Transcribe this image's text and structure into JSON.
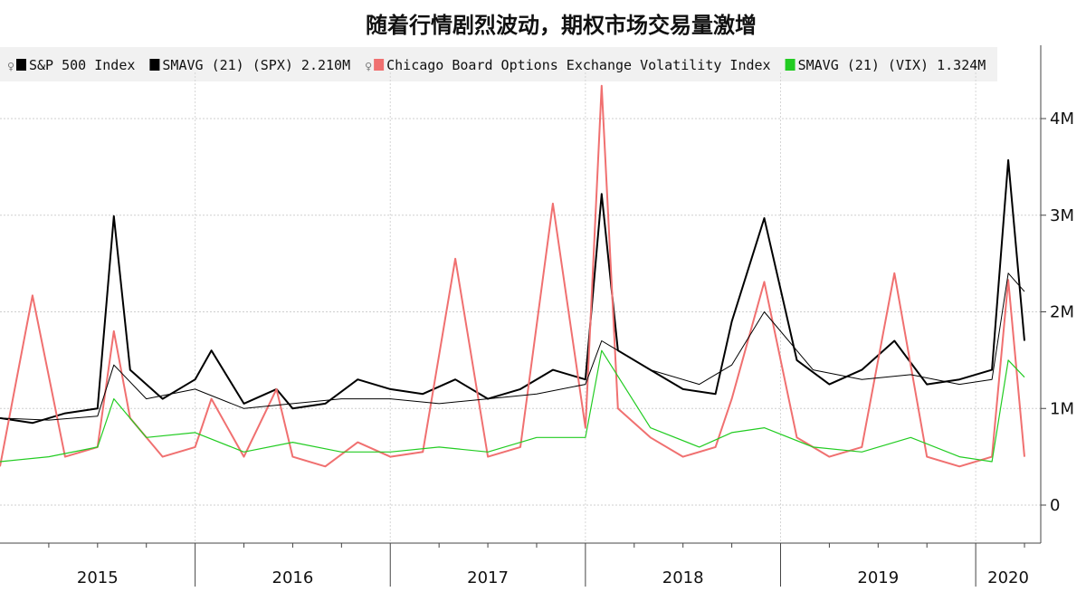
{
  "title": "随着行情剧烈波动，期权市场交易量激增",
  "legend": [
    {
      "name": "S&P 500 Index",
      "color": "#000000",
      "pin": true
    },
    {
      "name": "SMAVG (21) (SPX) 2.210M",
      "color": "#000000",
      "pin": false
    },
    {
      "name": "Chicago Board Options Exchange Volatility Index",
      "color": "#f07070",
      "pin": true
    },
    {
      "name": "SMAVG (21) (VIX) 1.324M",
      "color": "#22cc22",
      "pin": false
    }
  ],
  "chart_data": {
    "type": "line",
    "title": "随着行情剧烈波动，期权市场交易量激增",
    "xlabel": "",
    "ylabel": "",
    "x_range": [
      "2015-01",
      "2020-04"
    ],
    "ylim": [
      0,
      4600000
    ],
    "y_ticks": [
      0,
      1000000,
      2000000,
      3000000,
      4000000
    ],
    "y_tick_labels": [
      "0",
      "1M",
      "2M",
      "3M",
      "4M"
    ],
    "x_tick_labels": [
      "2015",
      "2016",
      "2017",
      "2018",
      "2019",
      "2020"
    ],
    "grid": true,
    "legend_position": "top-left",
    "y_axis_side": "right",
    "series": [
      {
        "name": "S&P 500 Index",
        "color": "#000000",
        "x": [
          "2015-01",
          "2015-03",
          "2015-05",
          "2015-07",
          "2015-08",
          "2015-09",
          "2015-11",
          "2016-01",
          "2016-02",
          "2016-04",
          "2016-06",
          "2016-07",
          "2016-09",
          "2016-11",
          "2017-01",
          "2017-03",
          "2017-05",
          "2017-07",
          "2017-09",
          "2017-11",
          "2018-01",
          "2018-02",
          "2018-03",
          "2018-05",
          "2018-07",
          "2018-09",
          "2018-10",
          "2018-12",
          "2019-02",
          "2019-04",
          "2019-06",
          "2019-08",
          "2019-10",
          "2019-12",
          "2020-02",
          "2020-03",
          "2020-04"
        ],
        "values": [
          900000,
          850000,
          950000,
          1000000,
          2990000,
          1400000,
          1100000,
          1300000,
          1600000,
          1050000,
          1200000,
          1000000,
          1050000,
          1300000,
          1200000,
          1150000,
          1300000,
          1100000,
          1200000,
          1400000,
          1300000,
          3220000,
          1600000,
          1400000,
          1200000,
          1150000,
          1900000,
          2970000,
          1500000,
          1250000,
          1400000,
          1700000,
          1250000,
          1300000,
          1400000,
          3570000,
          1700000
        ]
      },
      {
        "name": "SMAVG (21) (SPX) 2.210M",
        "color": "#000000",
        "x": [
          "2015-01",
          "2015-04",
          "2015-07",
          "2015-08",
          "2015-10",
          "2016-01",
          "2016-04",
          "2016-07",
          "2016-10",
          "2017-01",
          "2017-04",
          "2017-07",
          "2017-10",
          "2018-01",
          "2018-02",
          "2018-05",
          "2018-08",
          "2018-10",
          "2018-12",
          "2019-03",
          "2019-06",
          "2019-09",
          "2019-12",
          "2020-02",
          "2020-03",
          "2020-04"
        ],
        "values": [
          900000,
          880000,
          920000,
          1450000,
          1100000,
          1200000,
          1000000,
          1050000,
          1100000,
          1100000,
          1050000,
          1100000,
          1150000,
          1250000,
          1700000,
          1400000,
          1250000,
          1450000,
          2000000,
          1400000,
          1300000,
          1350000,
          1250000,
          1300000,
          2400000,
          2210000
        ]
      },
      {
        "name": "Chicago Board Options Exchange Volatility Index",
        "color": "#f07070",
        "x": [
          "2015-01",
          "2015-03",
          "2015-05",
          "2015-07",
          "2015-08",
          "2015-09",
          "2015-11",
          "2016-01",
          "2016-02",
          "2016-04",
          "2016-06",
          "2016-07",
          "2016-09",
          "2016-11",
          "2017-01",
          "2017-03",
          "2017-05",
          "2017-07",
          "2017-09",
          "2017-11",
          "2018-01",
          "2018-02",
          "2018-03",
          "2018-05",
          "2018-07",
          "2018-09",
          "2018-10",
          "2018-12",
          "2019-02",
          "2019-04",
          "2019-06",
          "2019-08",
          "2019-10",
          "2019-12",
          "2020-02",
          "2020-03",
          "2020-04"
        ],
        "values": [
          400000,
          2170000,
          500000,
          600000,
          1800000,
          900000,
          500000,
          600000,
          1100000,
          500000,
          1200000,
          500000,
          400000,
          650000,
          500000,
          550000,
          2550000,
          500000,
          600000,
          3120000,
          800000,
          4340000,
          1000000,
          700000,
          500000,
          600000,
          1100000,
          2310000,
          700000,
          500000,
          600000,
          2400000,
          500000,
          400000,
          500000,
          2330000,
          500000
        ]
      },
      {
        "name": "SMAVG (21) (VIX) 1.324M",
        "color": "#22cc22",
        "x": [
          "2015-01",
          "2015-04",
          "2015-07",
          "2015-08",
          "2015-10",
          "2016-01",
          "2016-04",
          "2016-07",
          "2016-10",
          "2017-01",
          "2017-04",
          "2017-07",
          "2017-10",
          "2018-01",
          "2018-02",
          "2018-05",
          "2018-08",
          "2018-10",
          "2018-12",
          "2019-03",
          "2019-06",
          "2019-09",
          "2019-12",
          "2020-02",
          "2020-03",
          "2020-04"
        ],
        "values": [
          450000,
          500000,
          600000,
          1100000,
          700000,
          750000,
          550000,
          650000,
          550000,
          550000,
          600000,
          550000,
          700000,
          700000,
          1600000,
          800000,
          600000,
          750000,
          800000,
          600000,
          550000,
          700000,
          500000,
          450000,
          1500000,
          1324000
        ]
      }
    ]
  }
}
